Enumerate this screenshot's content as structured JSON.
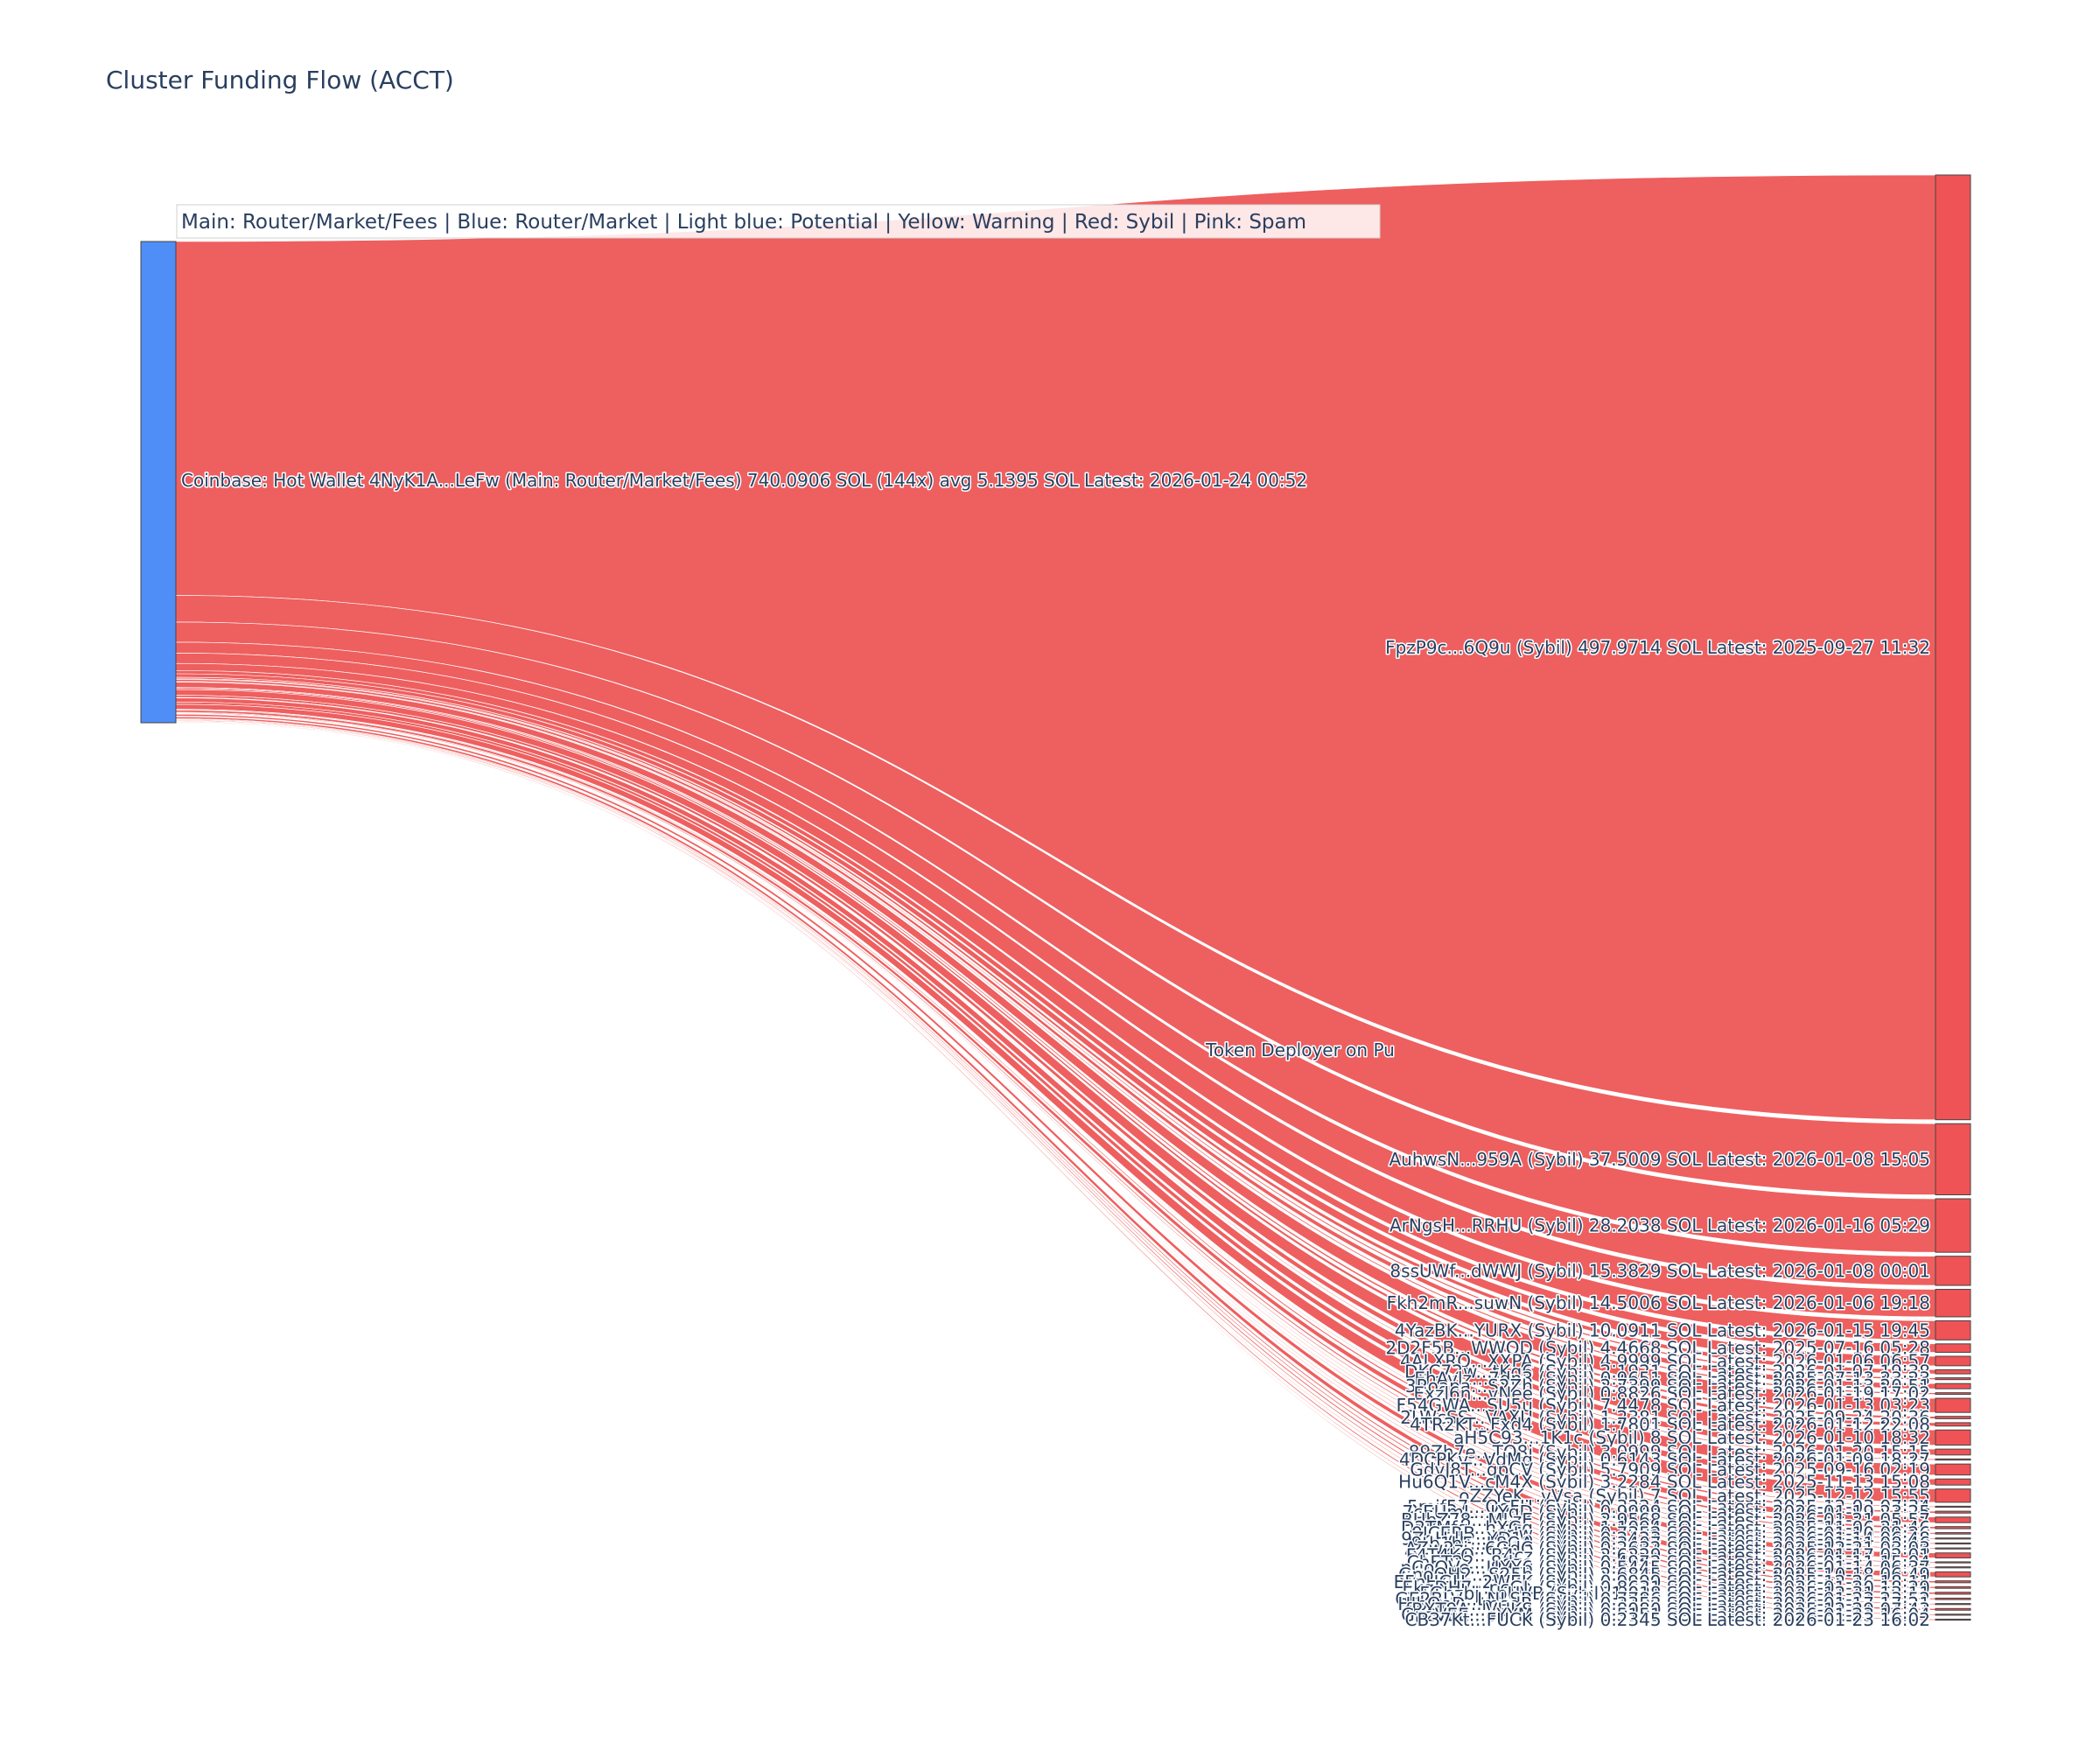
{
  "title": "Cluster Funding Flow (ACCT)",
  "legend": "Main: Router/Market/Fees  |  Blue: Router/Market | Light blue: Potential | Yellow: Warning | Red: Sybil | Pink: Spam",
  "colors": {
    "source_node": "#4f8ef7",
    "sybil": "#ef5356",
    "link": "rgba(235,64,64,0.84)",
    "label": "#2a3f5f"
  },
  "chart_data": {
    "type": "sankey",
    "title": "Cluster Funding Flow (ACCT)",
    "source": {
      "label": "Coinbase: Hot Wallet 4NyK1A...LeFw (Main: Router/Market/Fees) 740.0906 SOL (144x) avg 5.1395 SOL Latest: 2026-01-24 00:52",
      "total_sol": 740.0906,
      "count": 144,
      "avg_sol": 5.1395
    },
    "middle_label": "Token Deployer on Pu",
    "targets": [
      {
        "label": "FpzP9c...6Q9u (Sybil) 497.9714 SOL Latest: 2025-09-27 11:32",
        "value": 497.9714
      },
      {
        "label": "AuhwsN...959A (Sybil) 37.5009 SOL Latest: 2026-01-08 15:05",
        "value": 37.5009
      },
      {
        "label": "ArNgsH...RRHU (Sybil) 28.2038 SOL Latest: 2026-01-16 05:29",
        "value": 28.2038
      },
      {
        "label": "8ssUWf...dWWJ (Sybil) 15.3829 SOL Latest: 2026-01-08 00:01",
        "value": 15.3829
      },
      {
        "label": "Fkh2mR...suwN (Sybil) 14.5006 SOL Latest: 2026-01-06 19:18",
        "value": 14.5006
      },
      {
        "label": "4YazBK...YURX (Sybil) 10.0911 SOL Latest: 2026-01-15 19:45",
        "value": 10.0911
      },
      {
        "label": "2D2F5B...WWQD (Sybil) 4.4668 SOL Latest: 2025-07-16 05:28",
        "value": 4.4668
      },
      {
        "label": "4ALXRQ...XXPA (Sybil) 4.9999 SOL Latest: 2026-01-06 06:57",
        "value": 4.9999
      },
      {
        "label": "DKC72w...tKg6 (Sybil) 2.1921 SOL Latest: 2026-01-07 19:38",
        "value": 2.1921
      },
      {
        "label": "EhAvlz...7dn3 (Sybil) 0.9651 SOL Latest: 2025-07-13 23:23",
        "value": 0.9651
      },
      {
        "label": "3Roapa...S2Zh (Sybil) 2.7399 SOL Latest: 2026-01-13 20:51",
        "value": 2.7399
      },
      {
        "label": "Exzl6n...vNee (Sybil) 0.8826 SOL Latest: 2026-01-19 17:02",
        "value": 0.8826
      },
      {
        "label": "F54GWA...SU5u (Sybil) 7.4478 SOL Latest: 2026-01-13 03:23",
        "value": 7.4478
      },
      {
        "label": "2LWcSS...VAXU (Sybil) 1.2381 SOL Latest: 2025-09-24 20:36",
        "value": 1.2381
      },
      {
        "label": "4TR2KT...Fxd4 (Sybil) 1.7801 SOL Latest: 2026-01-12 22:08",
        "value": 1.7801
      },
      {
        "label": "aH5C93...1K1c (Sybil) 8 SOL Latest: 2026-01-10 18:32",
        "value": 8.0
      },
      {
        "label": "89Zh7e...TQ8j (Sybil) 3.0999 SOL Latest: 2026-01-20 15:15",
        "value": 3.0999
      },
      {
        "label": "4DCPKv...VdMg (Sybil) 0.6143 SOL Latest: 2026-01-09 18:27",
        "value": 0.6143
      },
      {
        "label": "GdyJ8T...gpCV (Sybil) 5.7909 SOL Latest: 2025-09-16 02:19",
        "value": 5.7909
      },
      {
        "label": "Hu6Q1V...cM4X (Sybil) 3.2284 SOL Latest: 2025-11-13 15:08",
        "value": 3.2284
      },
      {
        "label": "oZZYeK...vVsa (Sybil) 7 SOL Latest: 2025-12-12 15:55",
        "value": 7.0
      },
      {
        "label": "5mif57...OoFH (Sybil) 0.3224 SOL Latest: 2025-12-03 07:34",
        "value": 0.3224
      },
      {
        "label": "7cEUmL...LYgD (Sybil) 0.9999 SOL Latest: 2026-01-19 23:25",
        "value": 0.9999
      },
      {
        "label": "BUbZ78...MLzE (Sybil) 2.9568 SOL Latest: 2026-01-21 05:57",
        "value": 2.9568
      },
      {
        "label": "D2TMfq...hXGq (Sybil) 1.1094 SOL Latest: 2025-11-06 21:46",
        "value": 1.1094
      },
      {
        "label": "9JCERB...wrJw (Sybil) 0.7352 SOL Latest: 2026-01-10 09:26",
        "value": 0.7352
      },
      {
        "label": "9ZoHdb...YD1o (Sybil) 0.2423 SOL Latest: 2026-01-14 06:48",
        "value": 0.2423
      },
      {
        "label": "9tb1hF...L8QA (Sybil) 0.3407 SOL Latest: 2026-01-11 08:46",
        "value": 0.3407
      },
      {
        "label": "AZw2zj...6GdC (Sybil) 0.2632 SOL Latest: 2025-12-21 03:03",
        "value": 0.2632
      },
      {
        "label": "F4T4KQ...B4cz (Sybil) 2.6229 SOL Latest: 2026-01-17 02:01",
        "value": 2.6229
      },
      {
        "label": "ChET22...8dzo (Sybil) 0.4972 SOL Latest: 2026-01-11 15:04",
        "value": 0.4972
      },
      {
        "label": "pCoQVe...UXY6 (Sybil) 0.5445 SOL Latest: 2026-01-14 06:37",
        "value": 0.5445
      },
      {
        "label": "GnoQH2...S25b (Sybil) 2.6845 SOL Latest: 2025-10-18 06:49",
        "value": 2.6845
      },
      {
        "label": "EFnHGH...2WEK (Sybil) 0.9999 SOL Latest: 2025-12-26 18:11",
        "value": 0.9999
      },
      {
        "label": "EkqDH7...pcGL (Sybil) 0.8631 SOL Latest: 2026-01-20 18:29",
        "value": 0.8631
      },
      {
        "label": "FGhzbj...bUVB (Sybil) 1.018 SOL Latest: 2025-12-31 13:11",
        "value": 1.018
      },
      {
        "label": "GE2BLV...LNLSR (Sybil) 0.7786 SOL Latest: 2026-01-23 23:52",
        "value": 0.7786
      },
      {
        "label": "HJbQeD...medR (Sybil) 0.3353 SOL Latest: 2026-01-17 17:21",
        "value": 0.3353
      },
      {
        "label": "fRXT9A...VUKS (Sybil) 0.8980 SOL Latest: 2025-12-29 07:43",
        "value": 0.898
      },
      {
        "label": "GpzVEE...eYYM (Sybil) 0.5151 SOL Latest: 2026-01-23 16:04",
        "value": 0.5151
      },
      {
        "label": "CB37Kt...FUCK (Sybil) 0.2345 SOL Latest: 2026-01-23 16:02",
        "value": 0.2345
      }
    ]
  }
}
